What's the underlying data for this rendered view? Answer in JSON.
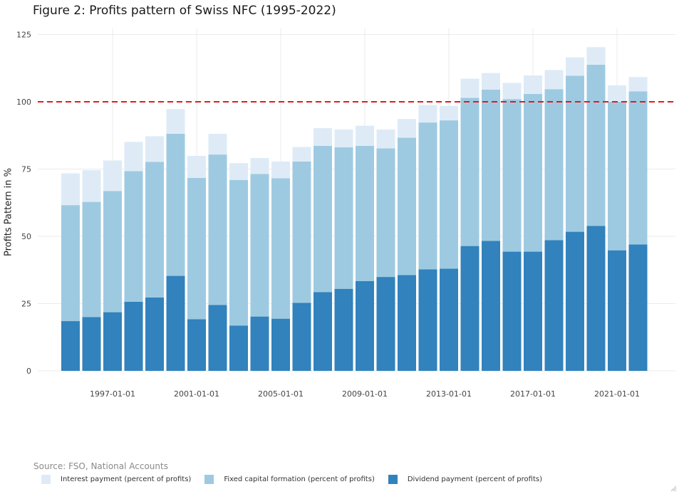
{
  "chart_data": {
    "type": "bar",
    "stacked": true,
    "title": "Figure 2: Profits pattern of Swiss NFC (1995-2022)",
    "xlabel": "",
    "ylabel": "Profits Pattern in %",
    "ylim": [
      0,
      128
    ],
    "yticks": [
      0,
      25,
      50,
      75,
      100,
      125
    ],
    "x": [
      "1995-01-01",
      "1996-01-01",
      "1997-01-01",
      "1998-01-01",
      "1999-01-01",
      "2000-01-01",
      "2001-01-01",
      "2002-01-01",
      "2003-01-01",
      "2004-01-01",
      "2005-01-01",
      "2006-01-01",
      "2007-01-01",
      "2008-01-01",
      "2009-01-01",
      "2010-01-01",
      "2011-01-01",
      "2012-01-01",
      "2013-01-01",
      "2014-01-01",
      "2015-01-01",
      "2016-01-01",
      "2017-01-01",
      "2018-01-01",
      "2019-01-01",
      "2020-01-01",
      "2021-01-01",
      "2022-01-01"
    ],
    "xticks": [
      "1997-01-01",
      "2001-01-01",
      "2005-01-01",
      "2009-01-01",
      "2013-01-01",
      "2017-01-01",
      "2021-01-01"
    ],
    "series": [
      {
        "name": "Dividend payment (percent of profits)",
        "color": "#3182bd",
        "values": [
          18.5,
          20,
          21.8,
          25.7,
          27.3,
          35.3,
          19.2,
          24.5,
          16.8,
          20.2,
          19.4,
          25.3,
          29.3,
          30.5,
          33.4,
          34.9,
          35.6,
          37.7,
          38,
          46.4,
          48.3,
          44.3,
          44.3,
          48.6,
          51.7,
          53.9,
          44.8,
          47
        ]
      },
      {
        "name": "Fixed capital formation (percent of profits)",
        "color": "#9ecae1",
        "values": [
          43.1,
          42.8,
          45,
          48.5,
          50.4,
          52.8,
          52.5,
          55.9,
          54.1,
          53,
          52.2,
          52.5,
          54.3,
          52.6,
          50.2,
          47.8,
          51.1,
          54.6,
          55.1,
          55.1,
          56.2,
          56.7,
          58.6,
          56.1,
          58,
          59.9,
          55.2,
          56.9
        ]
      },
      {
        "name": "Interest payment (percent of profits)",
        "color": "#deebf7",
        "values": [
          11.8,
          11.8,
          11.4,
          10.9,
          9.5,
          9.2,
          8.2,
          7.7,
          6.3,
          5.9,
          6.2,
          5.4,
          6.6,
          6.6,
          7.5,
          7,
          6.9,
          6.5,
          5.4,
          7.1,
          6.2,
          6,
          6.9,
          7.1,
          6.8,
          6.5,
          6.1,
          5.3
        ]
      }
    ],
    "reference_line": {
      "y": 100,
      "color": "#e31a1c",
      "style": "dashed"
    },
    "grid": true,
    "legend_placement": "bottom-left"
  },
  "source": "Source: FSO, National Accounts",
  "legend": [
    {
      "label": "Interest payment (percent of profits)",
      "color": "#deebf7"
    },
    {
      "label": "Fixed capital formation (percent of profits)",
      "color": "#9ecae1"
    },
    {
      "label": "Dividend payment (percent of profits)",
      "color": "#3182bd"
    }
  ]
}
